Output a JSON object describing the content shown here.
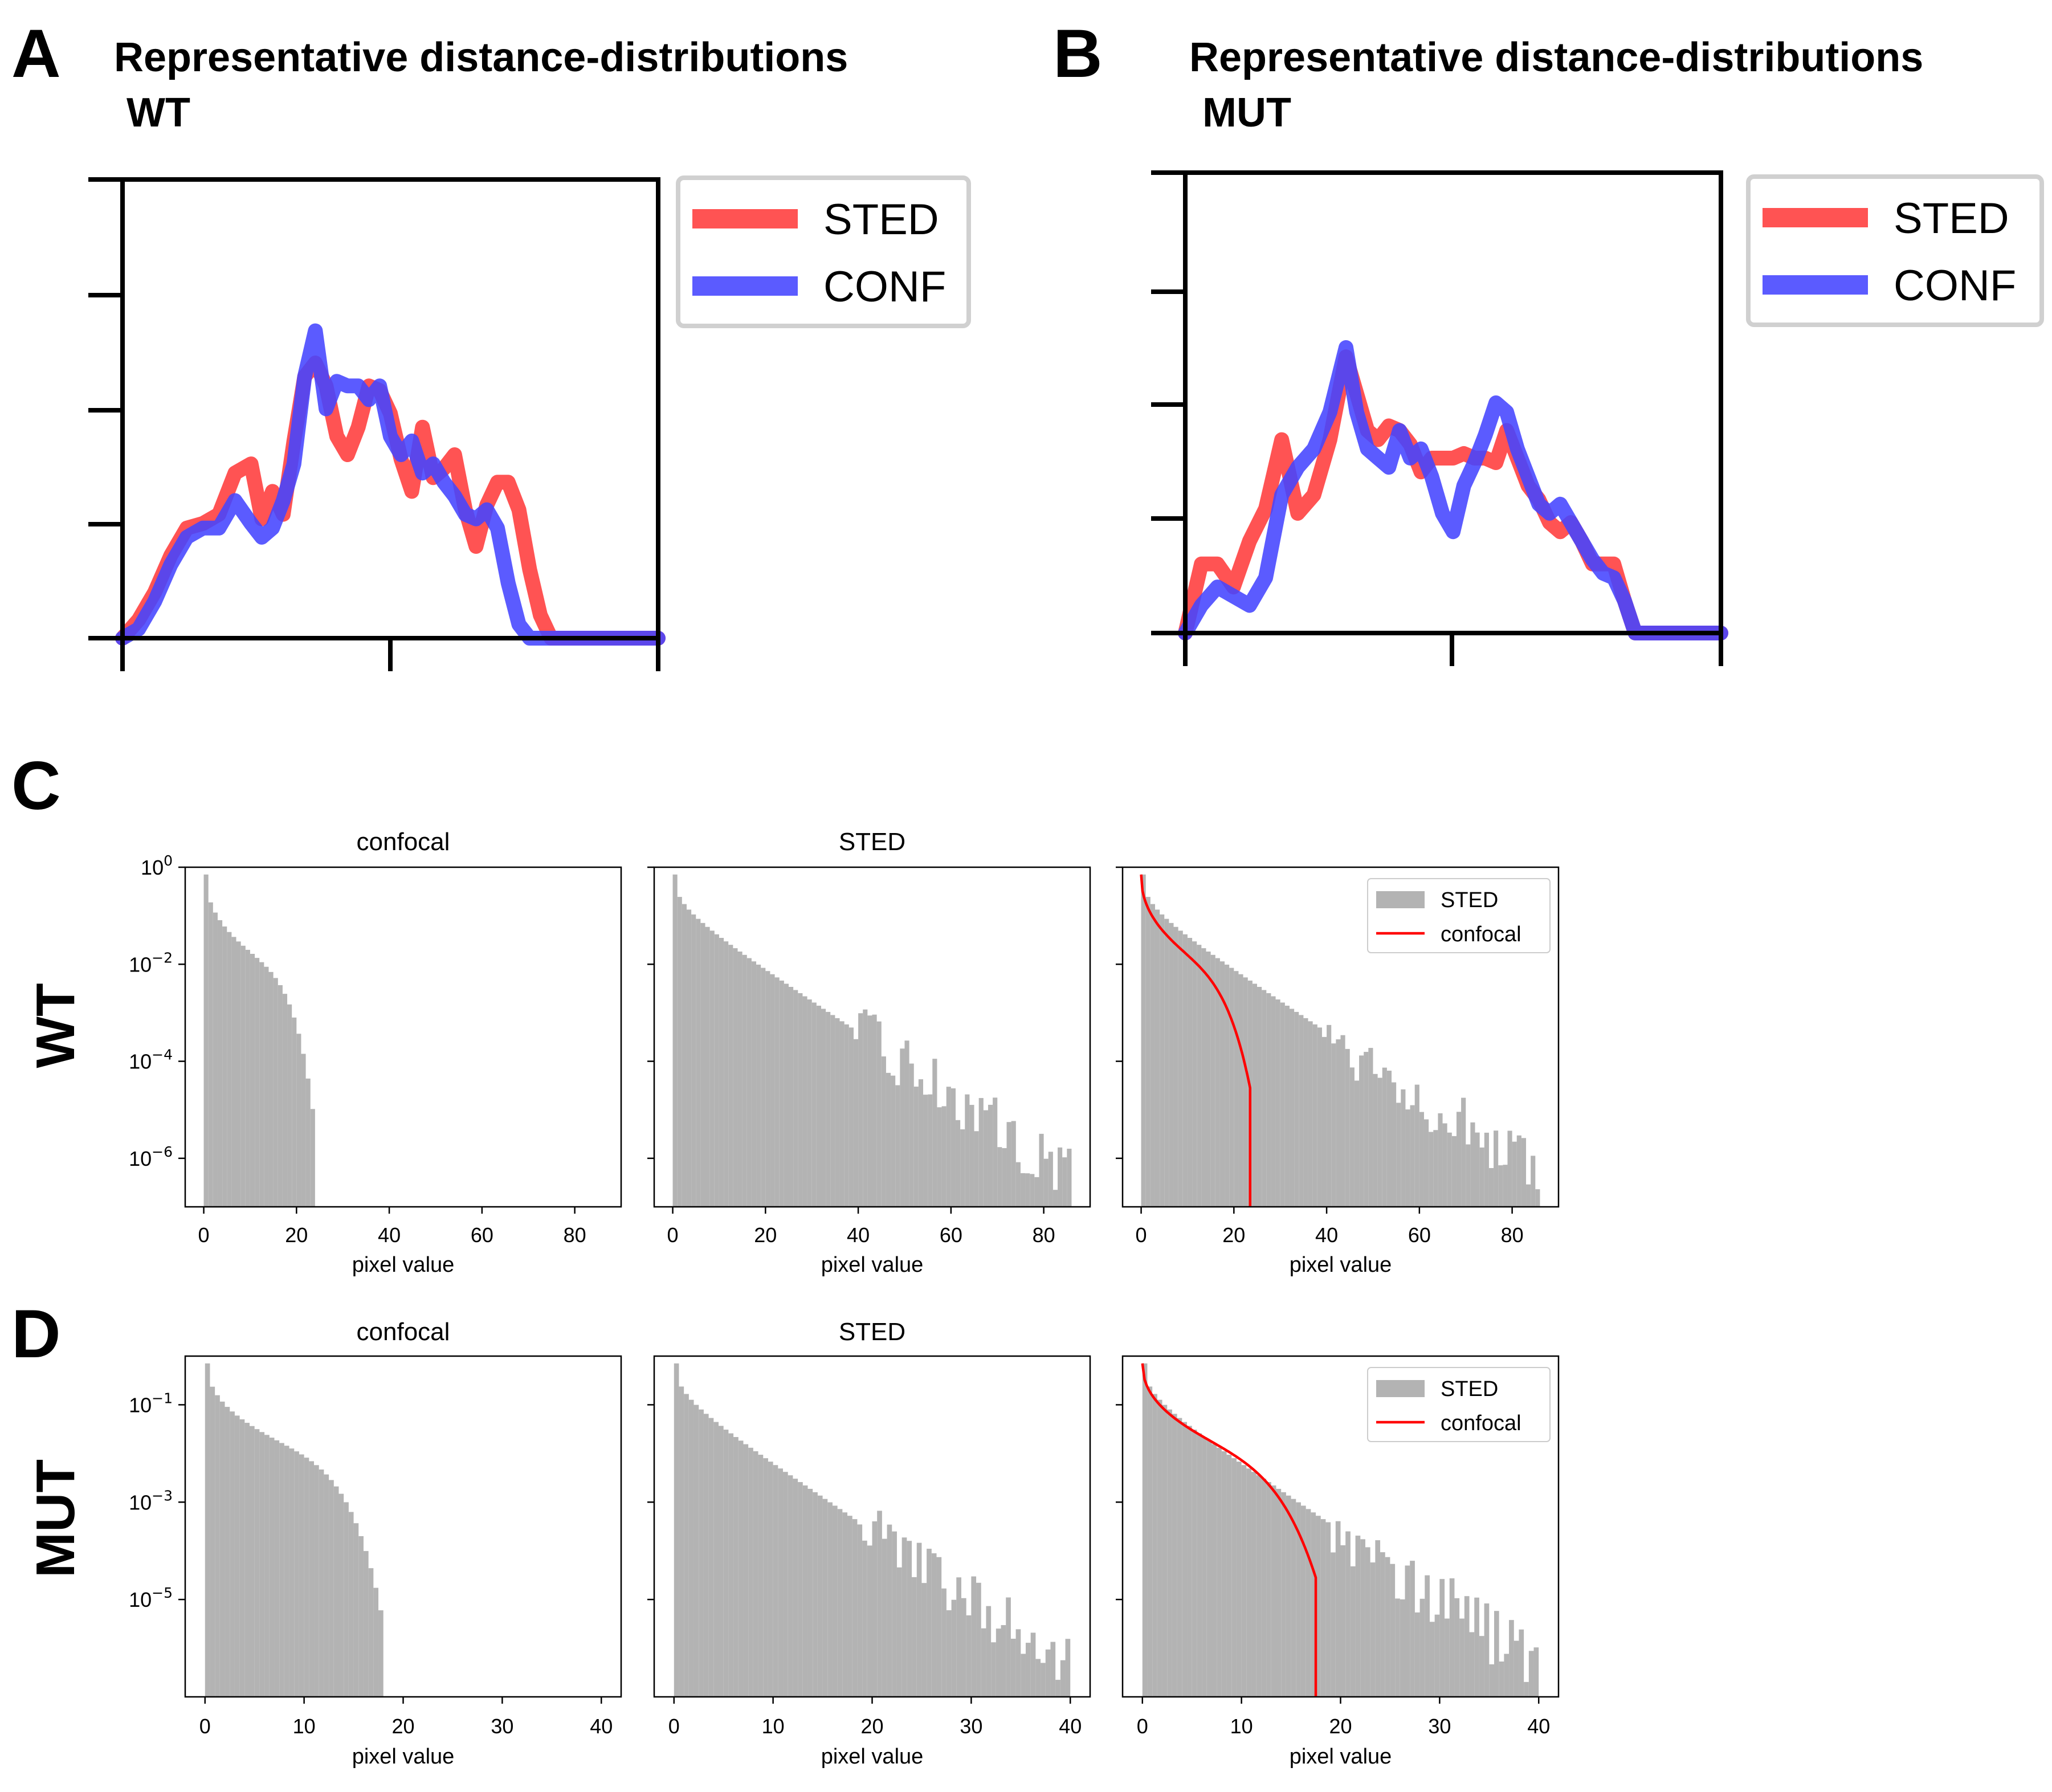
{
  "chart_data": [
    {
      "panel": "A",
      "type": "line",
      "title": "Representative distance-distributions",
      "subtitle": "WT",
      "xlabel": "",
      "ylabel": "",
      "xlim": [
        0,
        100
      ],
      "ylim": [
        0,
        100
      ],
      "legend": "outside-top-right",
      "series": [
        {
          "name": "STED",
          "color": "#ff3b3b",
          "x": [
            0,
            3,
            6,
            9,
            12,
            15,
            18,
            21,
            24,
            26,
            28,
            30,
            32,
            34,
            36,
            38,
            40,
            42,
            44,
            46,
            48,
            50,
            52,
            54,
            56,
            58,
            60,
            62,
            64,
            66,
            68,
            70,
            72,
            74,
            76,
            78,
            80,
            82,
            84,
            86,
            88,
            90,
            92,
            95,
            100
          ],
          "y": [
            0,
            4,
            10,
            18,
            24,
            25,
            27,
            36,
            38,
            26,
            32,
            27,
            43,
            57,
            60,
            55,
            44,
            40,
            46,
            55,
            54,
            49,
            39,
            32,
            46,
            35,
            37,
            40,
            28,
            20,
            29,
            34,
            34,
            28,
            15,
            5,
            0,
            0,
            0,
            0,
            0,
            0,
            0,
            0,
            0
          ]
        },
        {
          "name": "CONF",
          "color": "#4444ff",
          "x": [
            0,
            3,
            6,
            9,
            12,
            15,
            18,
            21,
            24,
            26,
            28,
            30,
            32,
            34,
            36,
            38,
            40,
            42,
            44,
            46,
            48,
            50,
            52,
            54,
            56,
            58,
            60,
            62,
            64,
            66,
            68,
            70,
            72,
            74,
            76,
            78,
            80,
            82,
            84,
            86,
            88,
            90,
            92,
            95,
            100
          ],
          "y": [
            0,
            2,
            8,
            16,
            22,
            24,
            24,
            30,
            25,
            22,
            24,
            30,
            38,
            57,
            67,
            50,
            56,
            55,
            55,
            52,
            55,
            44,
            40,
            43,
            36,
            38,
            34,
            31,
            27,
            26,
            28,
            24,
            12,
            3,
            0,
            0,
            0,
            0,
            0,
            0,
            0,
            0,
            0,
            0,
            0
          ]
        }
      ]
    },
    {
      "panel": "B",
      "type": "line",
      "title": "Representative distance-distributions",
      "subtitle": "MUT",
      "xlabel": "",
      "ylabel": "",
      "xlim": [
        0,
        100
      ],
      "ylim": [
        0,
        100
      ],
      "legend": "outside-top-right",
      "series": [
        {
          "name": "STED",
          "color": "#ff3b3b",
          "x": [
            0,
            3,
            6,
            9,
            12,
            15,
            18,
            21,
            24,
            27,
            30,
            32,
            34,
            36,
            38,
            40,
            42,
            44,
            46,
            48,
            50,
            52,
            54,
            56,
            58,
            60,
            62,
            64,
            66,
            68,
            70,
            72,
            74,
            76,
            78,
            80,
            82,
            84,
            86,
            88,
            90,
            92,
            95,
            100
          ],
          "y": [
            0,
            15,
            15,
            10,
            20,
            27,
            42,
            26,
            30,
            42,
            60,
            52,
            44,
            42,
            45,
            44,
            41,
            35,
            38,
            38,
            38,
            39,
            38,
            38,
            37,
            44,
            38,
            32,
            29,
            24,
            22,
            24,
            20,
            15,
            15,
            15,
            7,
            0,
            0,
            0,
            0,
            0,
            0,
            0
          ]
        },
        {
          "name": "CONF",
          "color": "#4444ff",
          "x": [
            0,
            3,
            6,
            9,
            12,
            15,
            18,
            21,
            24,
            27,
            30,
            32,
            34,
            36,
            38,
            40,
            42,
            44,
            46,
            48,
            50,
            52,
            54,
            56,
            58,
            60,
            62,
            64,
            66,
            68,
            70,
            72,
            74,
            76,
            78,
            80,
            82,
            84,
            86,
            88,
            90,
            92,
            95,
            100
          ],
          "y": [
            0,
            6,
            10,
            8,
            6,
            12,
            30,
            36,
            40,
            48,
            62,
            48,
            40,
            38,
            36,
            44,
            38,
            40,
            34,
            26,
            22,
            32,
            37,
            43,
            50,
            48,
            40,
            34,
            28,
            26,
            28,
            24,
            20,
            16,
            13,
            12,
            7,
            0,
            0,
            0,
            0,
            0,
            0,
            0
          ]
        }
      ]
    },
    {
      "panel": "C",
      "type": "bar",
      "row_label": "WT",
      "title": "confocal",
      "xlabel": "pixel value",
      "ylabel": "",
      "y_scale": "log",
      "xlim": [
        -4,
        90
      ],
      "ylim": [
        1e-07,
        1
      ],
      "xticks": [
        0,
        20,
        40,
        60,
        80
      ],
      "yticks": [
        {
          "base": "10",
          "exp": "0",
          "value": 1
        },
        {
          "base": "10",
          "exp": "−2",
          "value": 0.01
        },
        {
          "base": "10",
          "exp": "−4",
          "value": 0.0001
        },
        {
          "base": "10",
          "exp": "−6",
          "value": 1e-06
        }
      ],
      "series": [
        {
          "name": "confocal",
          "color": "#b3b3b3",
          "decay_to": 24,
          "bin_width": 1
        }
      ]
    },
    {
      "panel": "C",
      "type": "bar",
      "title": "STED",
      "xlabel": "pixel value",
      "ylabel": "",
      "y_scale": "log",
      "xlim": [
        -4,
        90
      ],
      "ylim": [
        1e-07,
        1
      ],
      "xticks": [
        0,
        20,
        40,
        60,
        80
      ],
      "series": [
        {
          "name": "STED",
          "color": "#b3b3b3",
          "decay_to": 86,
          "bin_width": 1
        }
      ]
    },
    {
      "panel": "C",
      "type": "bar",
      "title": "",
      "xlabel": "pixel value",
      "ylabel": "",
      "y_scale": "log",
      "xlim": [
        -4,
        90
      ],
      "ylim": [
        1e-07,
        1
      ],
      "xticks": [
        0,
        20,
        40,
        60,
        80
      ],
      "legend": "top-right",
      "series": [
        {
          "name": "STED",
          "color": "#b3b3b3",
          "style": "bar",
          "decay_to": 86,
          "bin_width": 1
        },
        {
          "name": "confocal",
          "color": "#ff0000",
          "style": "line",
          "end_x": 23.5
        }
      ]
    },
    {
      "panel": "D",
      "type": "bar",
      "row_label": "MUT",
      "title": "confocal",
      "xlabel": "pixel value",
      "ylabel": "",
      "y_scale": "log",
      "xlim": [
        -2,
        42
      ],
      "ylim": [
        1e-07,
        1
      ],
      "xticks": [
        0,
        10,
        20,
        30,
        40
      ],
      "yticks": [
        {
          "base": "10",
          "exp": "−1",
          "value": 0.1
        },
        {
          "base": "10",
          "exp": "−3",
          "value": 0.001
        },
        {
          "base": "10",
          "exp": "−5",
          "value": 1e-05
        }
      ],
      "series": [
        {
          "name": "confocal",
          "color": "#b3b3b3",
          "decay_to": 18,
          "bin_width": 0.5
        }
      ]
    },
    {
      "panel": "D",
      "type": "bar",
      "title": "STED",
      "xlabel": "pixel value",
      "ylabel": "",
      "y_scale": "log",
      "xlim": [
        -2,
        42
      ],
      "ylim": [
        1e-07,
        1
      ],
      "xticks": [
        0,
        10,
        20,
        30,
        40
      ],
      "series": [
        {
          "name": "STED",
          "color": "#b3b3b3",
          "decay_to": 40,
          "bin_width": 0.5
        }
      ]
    },
    {
      "panel": "D",
      "type": "bar",
      "title": "",
      "xlabel": "pixel value",
      "ylabel": "",
      "y_scale": "log",
      "xlim": [
        -2,
        42
      ],
      "ylim": [
        1e-07,
        1
      ],
      "xticks": [
        0,
        10,
        20,
        30,
        40
      ],
      "legend": "top-right",
      "series": [
        {
          "name": "STED",
          "color": "#b3b3b3",
          "style": "bar",
          "decay_to": 40,
          "bin_width": 0.5
        },
        {
          "name": "confocal",
          "color": "#ff0000",
          "style": "line",
          "end_x": 17.5
        }
      ]
    }
  ]
}
